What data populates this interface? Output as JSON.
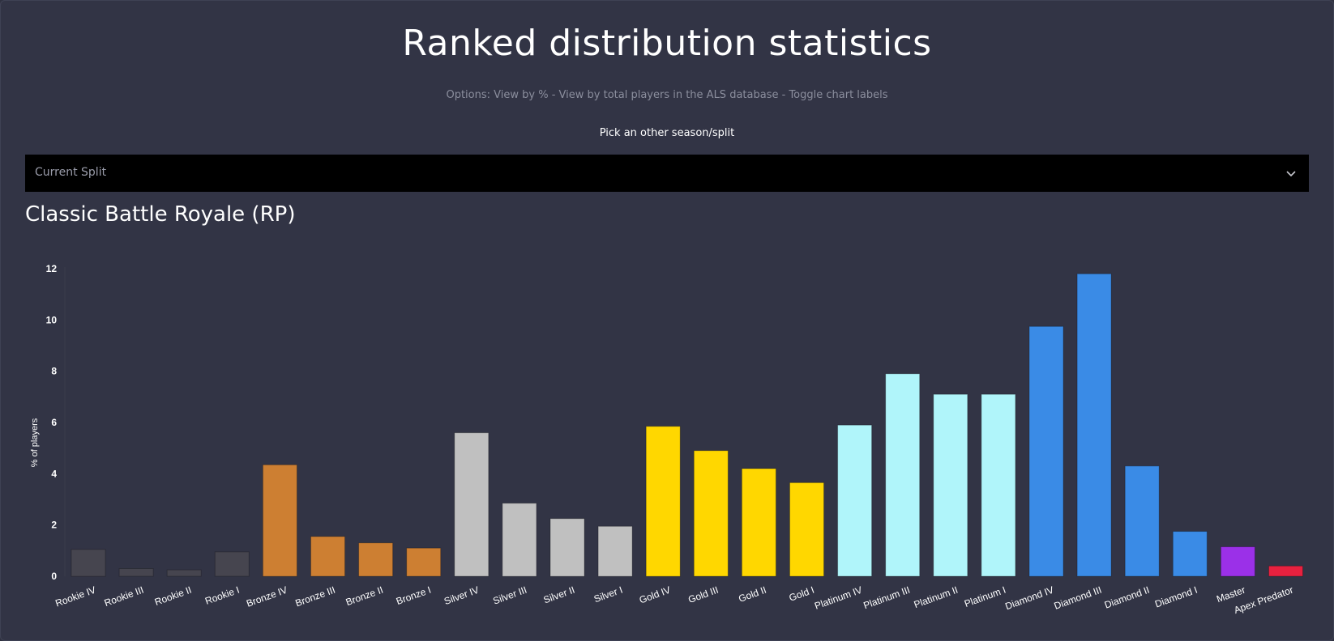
{
  "header": {
    "title": "Ranked distribution statistics",
    "options_prefix": "Options: ",
    "option_percent": "View by %",
    "option_total": "View by total players in the ALS database",
    "option_labels": "Toggle chart labels",
    "separator": " - ",
    "pick_label": "Pick an other season/split"
  },
  "season_select": {
    "selected": "Current Split",
    "icon": "chevron-down-icon"
  },
  "section": {
    "title": "Classic Battle Royale (RP)"
  },
  "chart_data": {
    "type": "bar",
    "ylabel": "% of players",
    "ylim": [
      0,
      12
    ],
    "yticks": [
      0,
      2,
      4,
      6,
      8,
      10,
      12
    ],
    "grid": false,
    "legend": "none",
    "categories": [
      "Rookie IV",
      "Rookie III",
      "Rookie II",
      "Rookie I",
      "Bronze IV",
      "Bronze III",
      "Bronze II",
      "Bronze I",
      "Silver IV",
      "Silver III",
      "Silver II",
      "Silver I",
      "Gold IV",
      "Gold III",
      "Gold II",
      "Gold I",
      "Platinum IV",
      "Platinum III",
      "Platinum II",
      "Platinum I",
      "Diamond IV",
      "Diamond III",
      "Diamond II",
      "Diamond I",
      "Master",
      "Apex Predator"
    ],
    "values": [
      1.05,
      0.3,
      0.25,
      0.95,
      4.35,
      1.55,
      1.3,
      1.1,
      5.6,
      2.85,
      2.25,
      1.95,
      5.85,
      4.9,
      4.2,
      3.65,
      5.9,
      7.9,
      7.1,
      7.1,
      9.75,
      11.8,
      4.3,
      1.75,
      1.15,
      0.4
    ],
    "colors": [
      "#46454f",
      "#46454f",
      "#46454f",
      "#46454f",
      "#cd7f32",
      "#cd7f32",
      "#cd7f32",
      "#cd7f32",
      "#c0c0c0",
      "#c0c0c0",
      "#c0c0c0",
      "#c0c0c0",
      "#ffd700",
      "#ffd700",
      "#ffd700",
      "#ffd700",
      "#b0f5fa",
      "#b0f5fa",
      "#b0f5fa",
      "#b0f5fa",
      "#3a8be6",
      "#3a8be6",
      "#3a8be6",
      "#3a8be6",
      "#9b30e8",
      "#e8213f"
    ]
  }
}
